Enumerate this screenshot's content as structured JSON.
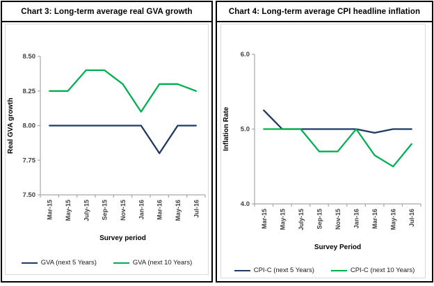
{
  "colors": {
    "navy": "#1F3864",
    "green": "#00B050",
    "axis_line": "#A6A6A6",
    "tick_text": "#404040",
    "frame_gray": "#D9D9D9",
    "border_black": "#000000",
    "background": "#FFFFFF"
  },
  "chart_data": [
    {
      "type": "line",
      "title": "Chart 3: Long-term average real GVA growth",
      "xlabel": "Survey period",
      "ylabel": "Real GVA growth",
      "ylim": [
        7.5,
        8.5
      ],
      "yticks": [
        8.5,
        8.25,
        8.0,
        7.75,
        7.5
      ],
      "ytick_labels": [
        "8.50",
        "8.25",
        "8.00",
        "7.75",
        "7.50"
      ],
      "categories": [
        "Mar-15",
        "May-15",
        "July-15",
        "Sep-15",
        "Nov-15",
        "Jan-16",
        "Mar-16",
        "May-16",
        "Jul-16"
      ],
      "grid": false,
      "legend_position": "bottom",
      "series": [
        {
          "name": "GVA (next 5 Years)",
          "color": "#1F3864",
          "values": [
            8.0,
            8.0,
            8.0,
            8.0,
            8.0,
            8.0,
            7.8,
            8.0,
            8.0
          ]
        },
        {
          "name": "GVA (next 10 Years)",
          "color": "#00B050",
          "values": [
            8.25,
            8.25,
            8.4,
            8.4,
            8.3,
            8.1,
            8.3,
            8.3,
            8.25
          ]
        }
      ]
    },
    {
      "type": "line",
      "title": "Chart 4: Long-term average CPI headline inflation",
      "xlabel": "Survey Period",
      "ylabel": "Inflation Rate",
      "ylim": [
        4.0,
        6.0
      ],
      "yticks": [
        6.0,
        5.0,
        4.0
      ],
      "ytick_labels": [
        "6.0",
        "5.0",
        "4.0"
      ],
      "categories": [
        "Mar-15",
        "May-15",
        "July-15",
        "Sep-15",
        "Nov-15",
        "Jan-16",
        "Mar-16",
        "May-16",
        "Jul-16"
      ],
      "grid": false,
      "legend_position": "bottom",
      "series": [
        {
          "name": "CPI-C (next 5 Years)",
          "color": "#1F3864",
          "values": [
            5.25,
            5.0,
            5.0,
            5.0,
            5.0,
            5.0,
            4.95,
            5.0,
            5.0
          ]
        },
        {
          "name": "CPI-C (next 10 Years)",
          "color": "#00B050",
          "values": [
            5.0,
            5.0,
            5.0,
            4.7,
            4.7,
            5.0,
            4.65,
            4.5,
            4.8
          ]
        }
      ]
    }
  ]
}
